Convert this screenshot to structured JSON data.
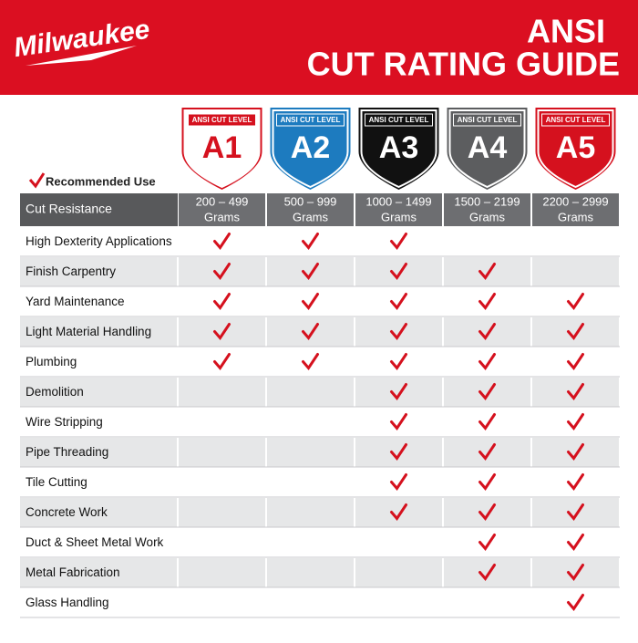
{
  "header": {
    "logo": "Milwaukee",
    "title_line1": "ANSI",
    "title_line2": "CUT RATING GUIDE"
  },
  "legend": "Recommended Use",
  "badges": [
    {
      "label": "ANSI CUT LEVEL",
      "level": "A1",
      "color": "#ffffff"
    },
    {
      "label": "ANSI CUT LEVEL",
      "level": "A2",
      "color": "#1d7bbf"
    },
    {
      "label": "ANSI CUT LEVEL",
      "level": "A3",
      "color": "#111111"
    },
    {
      "label": "ANSI CUT LEVEL",
      "level": "A4",
      "color": "#5c5d5f"
    },
    {
      "label": "ANSI CUT LEVEL",
      "level": "A5",
      "color": "#d5111e"
    }
  ],
  "table": {
    "header": "Cut Resistance",
    "columns": [
      {
        "range": "200 – 499",
        "unit": "Grams"
      },
      {
        "range": "500 – 999",
        "unit": "Grams"
      },
      {
        "range": "1000 – 1499",
        "unit": "Grams"
      },
      {
        "range": "1500 – 2199",
        "unit": "Grams"
      },
      {
        "range": "2200 – 2999",
        "unit": "Grams"
      }
    ],
    "rows": [
      {
        "label": "High Dexterity Applications",
        "checks": [
          true,
          true,
          true,
          false,
          false
        ]
      },
      {
        "label": "Finish Carpentry",
        "checks": [
          true,
          true,
          true,
          true,
          false
        ]
      },
      {
        "label": "Yard Maintenance",
        "checks": [
          true,
          true,
          true,
          true,
          true
        ]
      },
      {
        "label": "Light Material Handling",
        "checks": [
          true,
          true,
          true,
          true,
          true
        ]
      },
      {
        "label": "Plumbing",
        "checks": [
          true,
          true,
          true,
          true,
          true
        ]
      },
      {
        "label": "Demolition",
        "checks": [
          false,
          false,
          true,
          true,
          true
        ]
      },
      {
        "label": "Wire Stripping",
        "checks": [
          false,
          false,
          true,
          true,
          true
        ]
      },
      {
        "label": "Pipe Threading",
        "checks": [
          false,
          false,
          true,
          true,
          true
        ]
      },
      {
        "label": "Tile Cutting",
        "checks": [
          false,
          false,
          true,
          true,
          true
        ]
      },
      {
        "label": "Concrete Work",
        "checks": [
          false,
          false,
          true,
          true,
          true
        ]
      },
      {
        "label": "Duct & Sheet Metal Work",
        "checks": [
          false,
          false,
          false,
          true,
          true
        ]
      },
      {
        "label": "Metal Fabrication",
        "checks": [
          false,
          false,
          false,
          true,
          true
        ]
      },
      {
        "label": "Glass Handling",
        "checks": [
          false,
          false,
          false,
          false,
          true
        ]
      }
    ]
  }
}
